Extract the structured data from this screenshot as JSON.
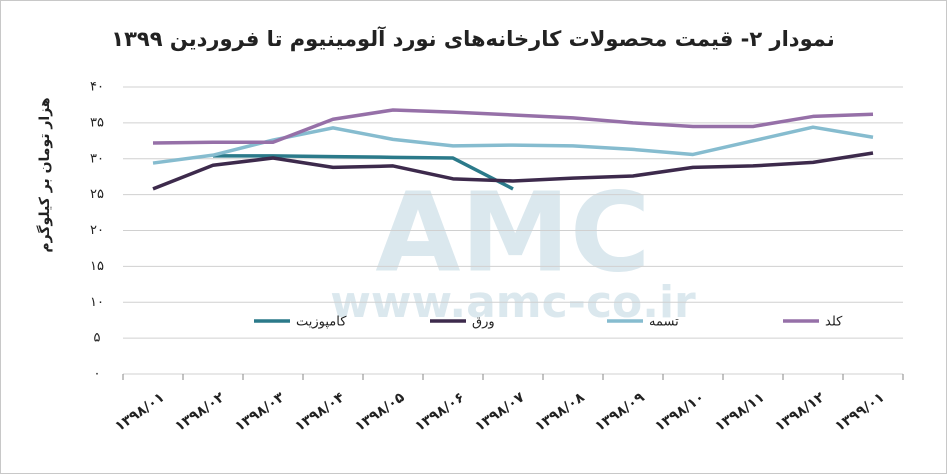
{
  "chart_data": {
    "type": "line",
    "title": "نمودار ۲- قیمت محصولات کارخانه‌های نورد آلومینیوم تا فروردین ۱۳۹۹",
    "y_label": "هزار تومان بر کیلوگرم",
    "watermark": {
      "logo": "AMC",
      "url": "www.amc-co.ir"
    },
    "categories": [
      "۱۳۹۸/۰۱",
      "۱۳۹۸/۰۲",
      "۱۳۹۸/۰۳",
      "۱۳۹۸/۰۴",
      "۱۳۹۸/۰۵",
      "۱۳۹۸/۰۶",
      "۱۳۹۸/۰۷",
      "۱۳۹۸/۰۸",
      "۱۳۹۸/۰۹",
      "۱۳۹۸/۱۰",
      "۱۳۹۸/۱۱",
      "۱۳۹۸/۱۲",
      "۱۳۹۹/۰۱"
    ],
    "series": [
      {
        "name": "کامپوزیت",
        "color": "#2b7a8a",
        "values": [
          null,
          30.4,
          30.4,
          30.3,
          30.2,
          30.1,
          25.8,
          null,
          null,
          null,
          null,
          null,
          null
        ]
      },
      {
        "name": "ورق",
        "color": "#3d2a4c",
        "values": [
          25.8,
          29.1,
          30.1,
          28.8,
          29.0,
          27.2,
          26.9,
          27.3,
          27.6,
          28.8,
          29.0,
          29.5,
          30.8
        ]
      },
      {
        "name": "تسمه",
        "color": "#86bccf",
        "values": [
          29.4,
          30.5,
          32.6,
          34.3,
          32.7,
          31.8,
          31.9,
          31.8,
          31.3,
          30.6,
          32.5,
          34.4,
          33.0
        ]
      },
      {
        "name": "کلد",
        "color": "#9670a8",
        "values": [
          32.2,
          32.3,
          32.3,
          35.5,
          36.8,
          36.5,
          36.1,
          35.7,
          35.0,
          34.5,
          34.5,
          35.9,
          36.2
        ]
      }
    ],
    "ylim": [
      0,
      40
    ],
    "yticks": [
      {
        "value": 0,
        "label": "٠"
      },
      {
        "value": 5,
        "label": "۵"
      },
      {
        "value": 10,
        "label": "۱۰"
      },
      {
        "value": 15,
        "label": "۱۵"
      },
      {
        "value": 20,
        "label": "۲۰"
      },
      {
        "value": 25,
        "label": "۲۵"
      },
      {
        "value": 30,
        "label": "۳۰"
      },
      {
        "value": 35,
        "label": "۳۵"
      },
      {
        "value": 40,
        "label": "۴۰"
      }
    ],
    "grid": true
  }
}
